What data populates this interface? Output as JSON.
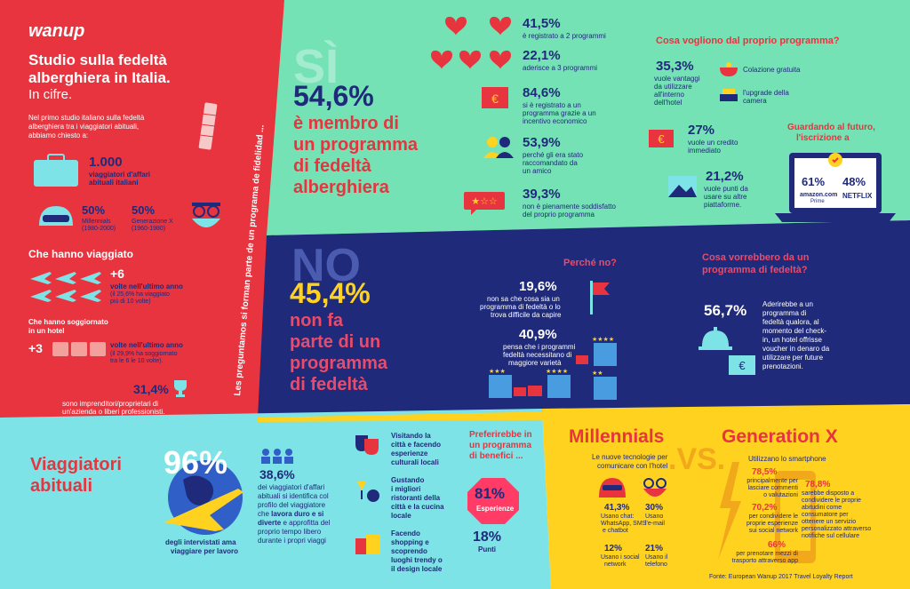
{
  "brand": "wanup",
  "left": {
    "title_l1": "Studio sulla fedeltà",
    "title_l2": "alberghiera in Italia.",
    "subtitle": "In cifre.",
    "intro_l1": "Nel primo studio italiano sulla fedeltà",
    "intro_l2": "alberghiera tra i viaggiatori abituali,",
    "intro_l3": "abbiamo chiesto a:",
    "count": "1.000",
    "count_l1": "viaggiatori d'affari",
    "count_l2": "abituali italiani",
    "mil_pct": "50%",
    "mil_label": "Millennials",
    "mil_years": "(1980-2000)",
    "genx_pct": "50%",
    "genx_label": "Generazione X",
    "genx_years": "(1960-1980)",
    "travel_head": "Che hanno viaggiato",
    "travel_val": "+6",
    "travel_l1": "volte nell'ultimo anno",
    "travel_l2": "(il 25,6% ha viaggiato",
    "travel_l3": "più di 10 volte)",
    "hotel_head_l1": "Che hanno soggiornato",
    "hotel_head_l2": "in un hotel",
    "hotel_val": "+3",
    "hotel_l1": "volte nell'ultimo anno",
    "hotel_l2": "(il 29,9% ha soggiornato",
    "hotel_l3": "tra le 6 le 10 volte).",
    "ent_pct": "31,4%",
    "ent_l1": "sono imprenditori/proprietari di",
    "ent_l2": "un'azienda o liberi professionisti."
  },
  "vertical_text": "Les preguntamos si forman parte de un programa de fidelidad ...",
  "si": {
    "word": "SÌ",
    "pct": "54,6%",
    "l1": "è membro di",
    "l2": "un programma",
    "l3": "di fedeltà",
    "l4": "alberghiera",
    "s1_pct": "41,5%",
    "s1_txt": "è registrato a 2 programmi",
    "s2_pct": "22,1%",
    "s2_txt": "aderisce a 3 programmi",
    "s3_pct": "84,6%",
    "s3_l1": "si è registrato a un",
    "s3_l2": "programma grazie a un",
    "s3_l3": "incentivo economico",
    "s4_pct": "53,9%",
    "s4_l1": "perché gli era stato",
    "s4_l2": "raccomandato da",
    "s4_l3": "un amico",
    "s5_pct": "39,3%",
    "s5_l1": "non è pienamente soddisfatto",
    "s5_l2": "del proprio programma",
    "want_head": "Cosa vogliono dal proprio programma?",
    "w1_pct": "35,3%",
    "w1_l1": "vuole vantaggi",
    "w1_l2": "da utilizzare",
    "w1_l3": "all'interno",
    "w1_l4": "dell'hotel",
    "w1a": "Colazione gratuita",
    "w1b_l1": "l'upgrade della",
    "w1b_l2": "camera",
    "w2_pct": "27%",
    "w2_l1": "vuole un credito",
    "w2_l2": "immediato",
    "w3_pct": "21,2%",
    "w3_l1": "vuole punti da",
    "w3_l2": "usare su altre",
    "w3_l3": "piattaforme.",
    "future_l1": "Guardando al futuro,",
    "future_l2": "l'iscrizione a",
    "amazon_pct": "61%",
    "amazon": "amazon.com",
    "prime": "Prime",
    "netflix_pct": "48%",
    "netflix": "NETFLIX"
  },
  "no": {
    "word": "NO",
    "pct": "45,4%",
    "l1": "non fa",
    "l2": "parte di un",
    "l3": "programma",
    "l4": "di fedeltà",
    "why_head": "Perché no?",
    "r1_pct": "19,6%",
    "r1_l1": "non sa che cosa sia un",
    "r1_l2": "programma di fedeltà o lo",
    "r1_l3": "trova difficile da capire",
    "r2_pct": "40,9%",
    "r2_l1": "pensa che i programmi",
    "r2_l2": "fedeltà necessitano di",
    "r2_l3": "maggiore varietà",
    "would_l1": "Cosa vorrebbero da un",
    "would_l2": "programma di fedeltà?",
    "v_pct": "56,7%",
    "v_l1": "Aderirebbe a un",
    "v_l2": "programma di",
    "v_l3": "fedeltà qualora, al",
    "v_l4": "momento del check-",
    "v_l5": "in, un hotel offrisse",
    "v_l6": "voucher in denaro da",
    "v_l7": "utilizzare per future",
    "v_l8": "prenotazioni."
  },
  "bottom": {
    "title_l1": "Viaggiatori",
    "title_l2": "abituali",
    "big_pct": "96%",
    "big_l1": "degli intervistati ama",
    "big_l2": "viaggiare per lavoro",
    "mid_pct": "38,6%",
    "mid_l1": "dei viaggiatori d'affari",
    "mid_l2": "abituali si identifica col",
    "mid_l3": "profilo del viaggiatore",
    "mid_l4a": "che ",
    "mid_l4b": "lavora duro e si",
    "mid_l5": "diverte",
    "mid_l5b": " e approfitta del",
    "mid_l6": "proprio tempo libero",
    "mid_l7": "durante i propri viaggi",
    "a1_l1": "Visitando la",
    "a1_l2": "città e facendo",
    "a1_l3": "esperienze",
    "a1_l4": "culturali locali",
    "a2_l1": "Gustando",
    "a2_l2": "i migliori",
    "a2_l3": "ristoranti della",
    "a2_l4": "città e la cucina",
    "a2_l5": "locale",
    "a3_l1": "Facendo",
    "a3_l2": "shopping e",
    "a3_l3": "scoprendo",
    "a3_l4": "luoghi trendy o",
    "a3_l5": "il design locale",
    "pref_l1": "Preferirebbe in",
    "pref_l2": "un programma",
    "pref_l3": "di benefici ...",
    "exp_pct": "81%",
    "exp_label": "Esperienze",
    "pts_pct": "18%",
    "pts_label": "Punti"
  },
  "gen": {
    "mil": "Millennials",
    "vs": ".VS.",
    "genx": "Generation X",
    "tech_l1": "Le nuove tecnologie per",
    "tech_l2": "comunicare con l'hotel",
    "c1_pct": "41,3%",
    "c1_l1": "Usano chat:",
    "c1_l2": "WhatsApp, SMS",
    "c1_l3": "e chatbot",
    "c2_pct": "30%",
    "c2_l1": "Usano",
    "c2_l2": "l'e-mail",
    "c3_pct": "12%",
    "c3_l1": "Usano i social",
    "c3_l2": "network",
    "c4_pct": "21%",
    "c4_l1": "Usano il",
    "c4_l2": "telefono",
    "phone_head": "Utilizzano lo smartphone",
    "p1_pct": "78,5%",
    "p1_l1": "principalmente per",
    "p1_l2": "lasciare commenti",
    "p1_l3": "o valutazioni",
    "p2_pct": "70,2%",
    "p2_l1": "per condividere le",
    "p2_l2": "proprie esperienze",
    "p2_l3": "sui social network",
    "p3_pct": "66%",
    "p3_l1": "per prenotare mezzi di",
    "p3_l2": "trasporto attraverso app",
    "p4_pct": "78,8%",
    "p4_l1": "sarebbe disposto a",
    "p4_l2": "condividere le proprie",
    "p4_l3": "abitudini come",
    "p4_l4": "consumatore per",
    "p4_l5": "ottenere un servizio",
    "p4_l6": "personalizzato attraverso",
    "p4_l7": "notifiche sul cellulare",
    "source": "Fonte: European Wanup 2017 Travel Loyalty Report"
  },
  "colors": {
    "red": "#e8343f",
    "mint": "#74e2b4",
    "navy": "#1f2a7a",
    "cyan": "#7ee3e6",
    "yellow": "#ffd21f",
    "pink": "#ff3b66"
  }
}
